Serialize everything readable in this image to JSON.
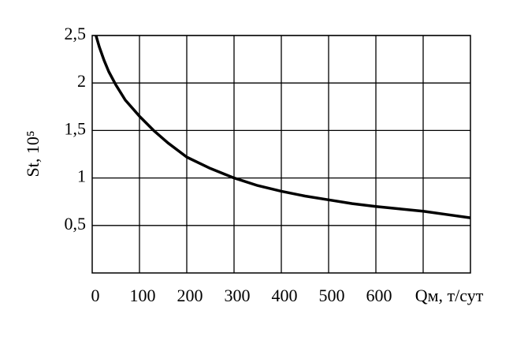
{
  "chart_data": {
    "type": "line",
    "y_label": "St, 10⁵",
    "x_label": "Qм, т/сут",
    "x": [
      8,
      15,
      25,
      35,
      50,
      70,
      100,
      130,
      160,
      200,
      250,
      300,
      350,
      400,
      450,
      500,
      550,
      600,
      650,
      700,
      750,
      800
    ],
    "series": [
      {
        "color": "#000000",
        "values": [
          2.5,
          2.38,
          2.24,
          2.12,
          1.98,
          1.82,
          1.65,
          1.5,
          1.37,
          1.22,
          1.1,
          1.0,
          0.92,
          0.86,
          0.81,
          0.77,
          0.73,
          0.7,
          0.675,
          0.65,
          0.615,
          0.58
        ]
      }
    ],
    "xlim": [
      0,
      800
    ],
    "xticks": [
      0,
      100,
      200,
      300,
      400,
      500,
      600
    ],
    "xgrid": [
      100,
      200,
      300,
      400,
      500,
      600,
      700
    ],
    "ylim": [
      0,
      2.5
    ],
    "yticks": [
      {
        "value": 0.5,
        "label": "0,5"
      },
      1,
      {
        "value": 1.5,
        "label": "1,5"
      },
      2,
      {
        "value": 2.5,
        "label": "2,5"
      }
    ],
    "grid": true
  }
}
